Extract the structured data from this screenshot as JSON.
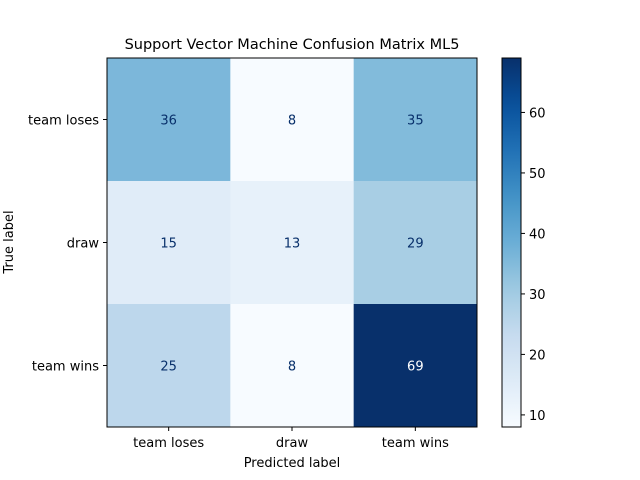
{
  "chart_data": {
    "type": "heatmap",
    "title": "Support Vector Machine Confusion Matrix ML5",
    "xlabel": "Predicted label",
    "ylabel": "True label",
    "x_categories": [
      "team loses",
      "draw",
      "team wins"
    ],
    "y_categories": [
      "team loses",
      "draw",
      "team wins"
    ],
    "values": [
      [
        36,
        8,
        35
      ],
      [
        15,
        13,
        29
      ],
      [
        25,
        8,
        69
      ]
    ],
    "colormap": "Blues",
    "colorbar": {
      "min": 8,
      "max": 69,
      "ticks": [
        10,
        20,
        30,
        40,
        50,
        60
      ]
    },
    "grid": false
  },
  "colors": {
    "text_dark": "#08306b",
    "text_light": "#ffffff",
    "axis": "#000000"
  }
}
